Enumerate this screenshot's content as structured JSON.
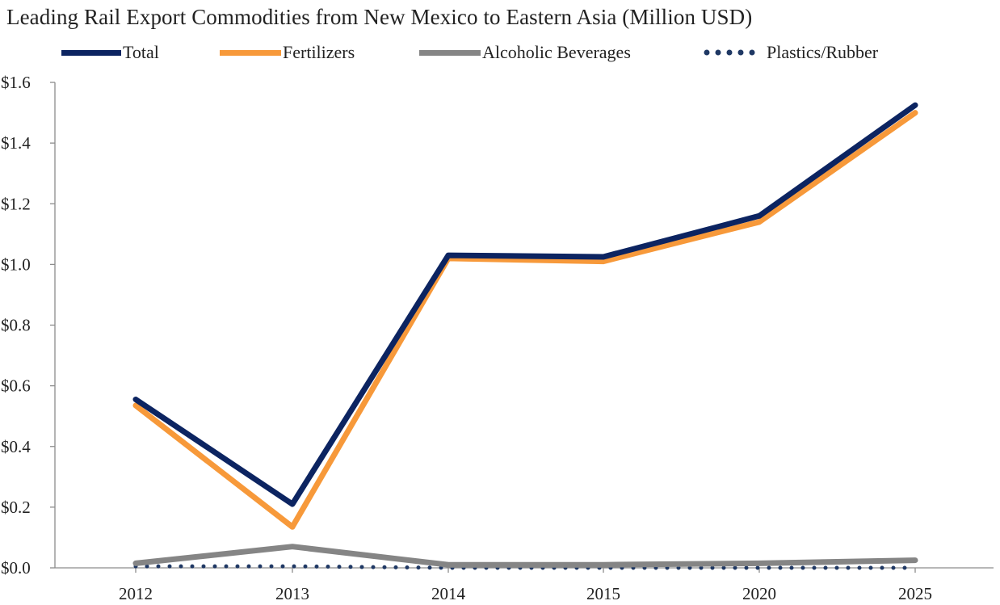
{
  "chart_data": {
    "type": "line",
    "title": "Leading Rail Export Commodities from New Mexico to Eastern Asia (Million USD)",
    "xlabel": "",
    "ylabel": "",
    "categories": [
      "2012",
      "2013",
      "2014",
      "2015",
      "2020",
      "2025"
    ],
    "ylim": [
      0,
      1.6
    ],
    "yticks": [
      0,
      0.2,
      0.4,
      0.6,
      0.8,
      1.0,
      1.2,
      1.4,
      1.6
    ],
    "ytick_labels": [
      "$0.0",
      "$0.2",
      "$0.4",
      "$0.6",
      "$0.8",
      "$1.0",
      "$1.2",
      "$1.4",
      "$1.6"
    ],
    "grid": false,
    "legend_position": "top",
    "series": [
      {
        "name": "Total",
        "values": [
          0.555,
          0.21,
          1.03,
          1.025,
          1.16,
          1.525
        ],
        "color": "#0c2461",
        "style": "solid"
      },
      {
        "name": "Fertilizers",
        "values": [
          0.535,
          0.135,
          1.02,
          1.01,
          1.14,
          1.5
        ],
        "color": "#f7993a",
        "style": "solid"
      },
      {
        "name": "Alcoholic Beverages",
        "values": [
          0.015,
          0.07,
          0.01,
          0.01,
          0.015,
          0.025
        ],
        "color": "#858585",
        "style": "solid"
      },
      {
        "name": "Plastics/Rubber",
        "values": [
          0.005,
          0.005,
          0.0,
          0.0,
          0.0,
          0.0
        ],
        "color": "#1f3864",
        "style": "dotted"
      }
    ]
  }
}
